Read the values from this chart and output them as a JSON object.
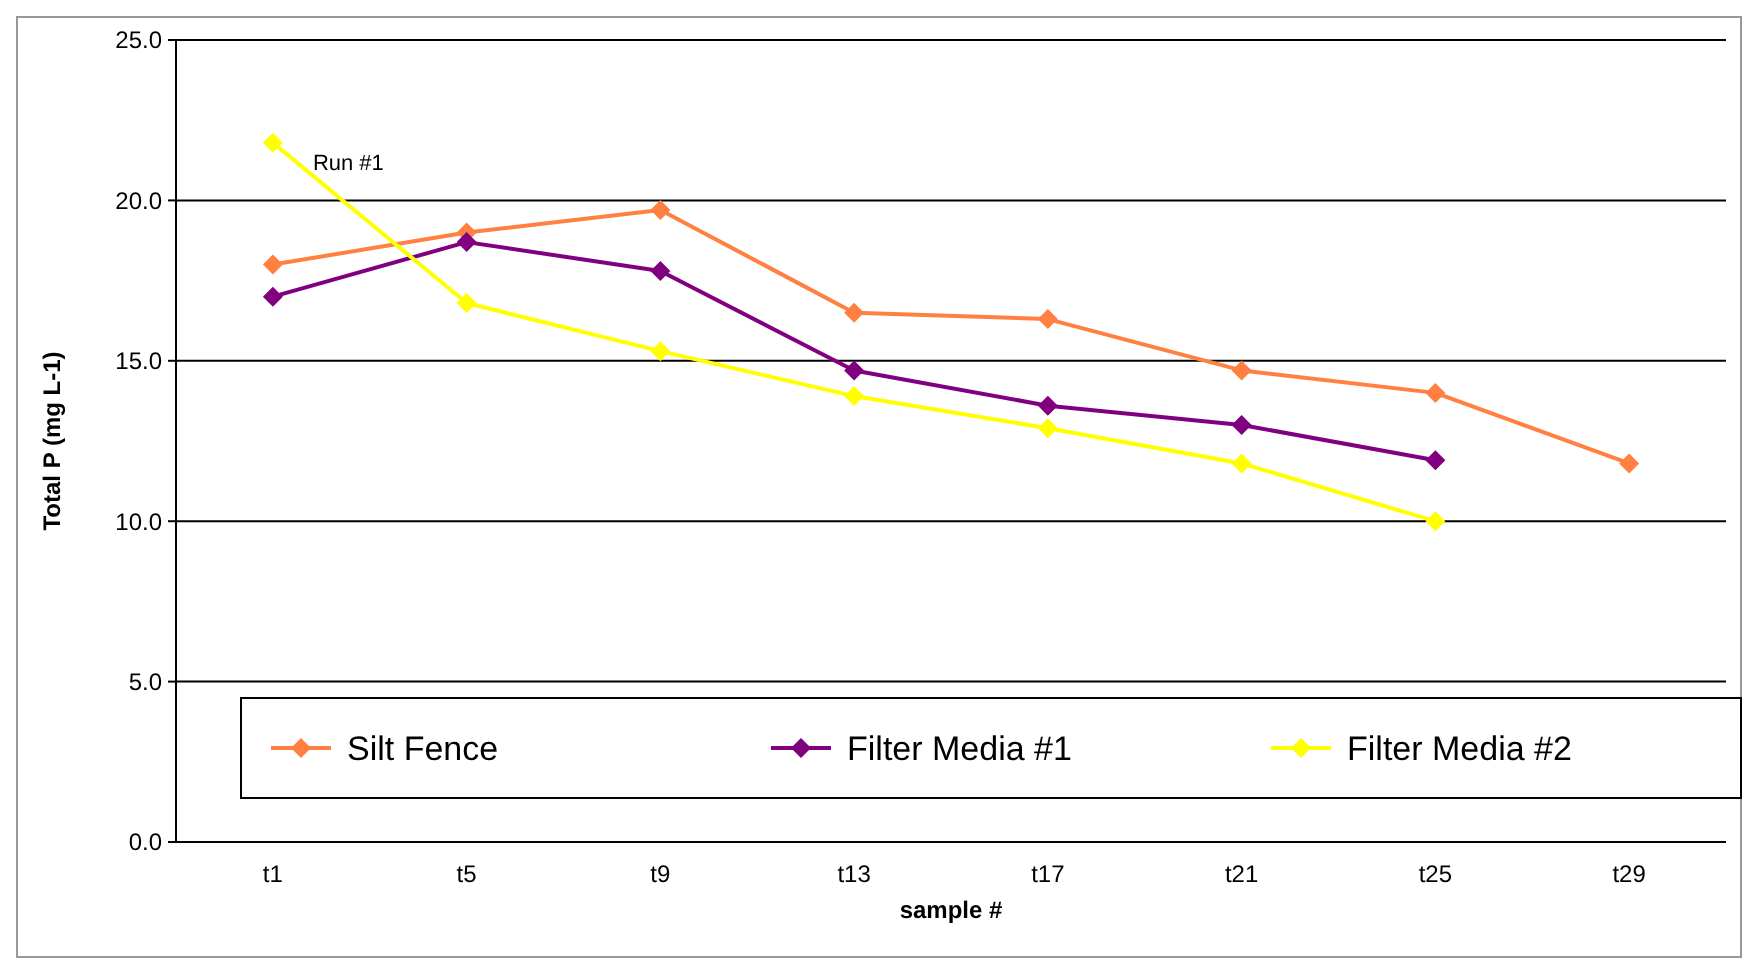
{
  "chart_data": {
    "type": "line",
    "ylabel": "Total P (mg L-1)",
    "xlabel": "sample #",
    "categories": [
      "t1",
      "t5",
      "t9",
      "t13",
      "t17",
      "t21",
      "t25",
      "t29"
    ],
    "series": [
      {
        "name": "Silt Fence",
        "color": "#ff8040",
        "values": [
          18.0,
          19.0,
          19.7,
          16.5,
          16.3,
          14.7,
          14.0,
          11.8
        ]
      },
      {
        "name": "Filter Media #1",
        "color": "#800080",
        "values": [
          17.0,
          18.7,
          17.8,
          14.7,
          13.6,
          13.0,
          11.9,
          null
        ]
      },
      {
        "name": "Filter Media #2",
        "color": "#ffff00",
        "values": [
          21.8,
          16.8,
          15.3,
          13.9,
          12.9,
          11.8,
          10.0,
          null
        ]
      }
    ],
    "ylim": [
      0,
      25
    ],
    "yticks": [
      {
        "value": 0,
        "label": "0.0"
      },
      {
        "value": 5,
        "label": "5.0"
      },
      {
        "value": 10,
        "label": "10.0"
      },
      {
        "value": 15,
        "label": "15.0"
      },
      {
        "value": 20,
        "label": "20.0"
      },
      {
        "value": 25,
        "label": "25.0"
      }
    ],
    "grid": "y",
    "legend": "bottom",
    "marker": "diamond",
    "line_style": "solid",
    "annotations": [
      "Run #1"
    ]
  }
}
